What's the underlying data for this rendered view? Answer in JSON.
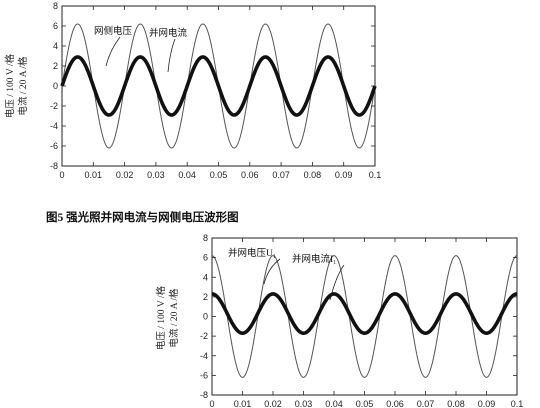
{
  "caption": "图5  强光照并网电流与网侧电压波形图",
  "chart_data": [
    {
      "type": "line",
      "ylabel_voltage": "电压 / 100 V /格",
      "ylabel_current": "电流 / 20 A /格",
      "xlim": [
        0,
        0.1
      ],
      "ylim": [
        -8,
        8
      ],
      "xticks": [
        "0",
        "0.01",
        "0.02",
        "0.03",
        "0.04",
        "0.05",
        "0.06",
        "0.07",
        "0.08",
        "0.09",
        "0.1"
      ],
      "yticks": [
        "-8",
        "-6",
        "-4",
        "-2",
        "0",
        "2",
        "4",
        "6",
        "8"
      ],
      "series": [
        {
          "name": "网侧电压",
          "type": "sine",
          "amplitude": 6.2,
          "frequency_hz": 50,
          "offset": 0,
          "phase_deg": 0
        },
        {
          "name": "并网电流",
          "type": "sine",
          "amplitude": 2.9,
          "frequency_hz": 50,
          "offset": 0,
          "phase_deg": 0
        }
      ]
    },
    {
      "type": "line",
      "ylabel_voltage": "电压 / 100 V /格",
      "ylabel_current": "电流 / 20 A /格",
      "xlim": [
        0,
        0.1
      ],
      "ylim": [
        -8,
        8
      ],
      "xticks": [
        "0",
        "0.01",
        "0.02",
        "0.03",
        "0.04",
        "0.05",
        "0.06",
        "0.07",
        "0.08",
        "0.09",
        "0.1"
      ],
      "yticks": [
        "-8",
        "-6",
        "-4",
        "-2",
        "0",
        "2",
        "4",
        "6",
        "8"
      ],
      "series": [
        {
          "name": "并网电压U₁",
          "type": "sine",
          "amplitude": 6.2,
          "frequency_hz": 50,
          "offset": 0,
          "phase_deg": 90
        },
        {
          "name": "并网电流I₁",
          "type": "sine",
          "amplitude": 2.0,
          "frequency_hz": 50,
          "offset": 0.3,
          "phase_deg": 90
        }
      ]
    }
  ]
}
